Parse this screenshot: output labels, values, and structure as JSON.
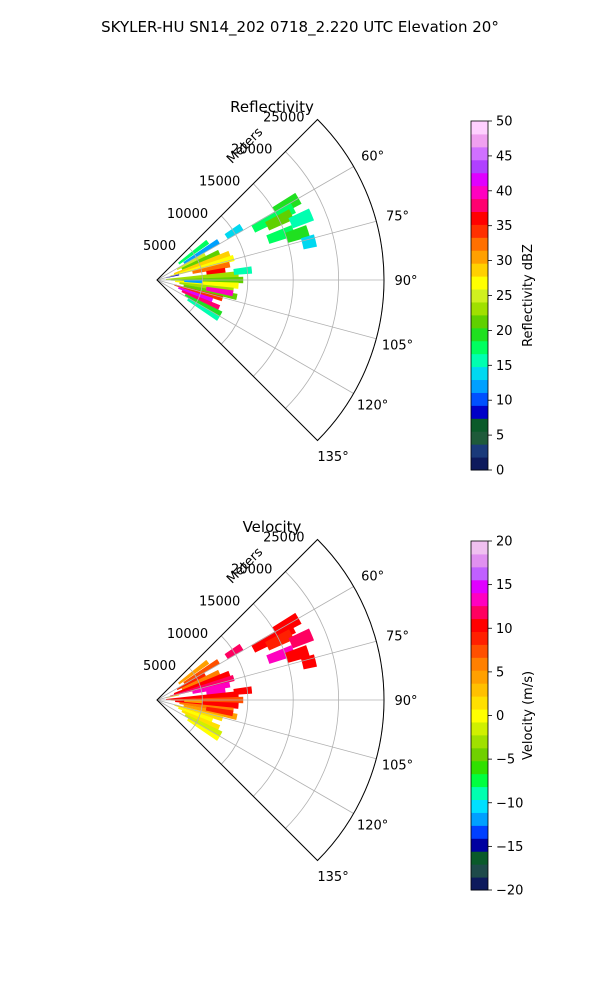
{
  "figure": {
    "suptitle": "SKYLER-HU  SN14_202  0718_2.220 UTC Elevation 20°"
  },
  "chart_data": [
    {
      "type": "heatmap",
      "projection": "polar-sector",
      "title": "Reflectivity",
      "radial_label": "Meters",
      "radial_ticks": [
        5000,
        10000,
        15000,
        20000,
        25000
      ],
      "radial_tick_labels": [
        "5000",
        "10000",
        "15000",
        "20000",
        "25000"
      ],
      "rmax": 25000,
      "azimuth_range_deg": [
        45,
        135
      ],
      "azimuth_ticks": [
        60,
        75,
        90,
        105,
        120,
        135
      ],
      "azimuth_tick_labels": [
        "60°",
        "75°",
        "90°",
        "105°",
        "120°",
        "135°"
      ],
      "grid": true,
      "colorbar": {
        "label": "Reflectivity dBZ",
        "range": [
          0,
          50
        ],
        "ticks": [
          0,
          5,
          10,
          15,
          20,
          25,
          30,
          35,
          40,
          45,
          50
        ],
        "tick_labels": [
          "0",
          "5",
          "10",
          "15",
          "20",
          "25",
          "30",
          "35",
          "40",
          "45",
          "50"
        ],
        "colors": [
          "#0d1a5c",
          "#1a3a7a",
          "#1e5a3a",
          "#0a5a2a",
          "#0000c8",
          "#0050ff",
          "#00a0ff",
          "#00d8f0",
          "#00ffb0",
          "#00ff60",
          "#20e020",
          "#60d000",
          "#a0e000",
          "#d0f020",
          "#ffff00",
          "#ffd000",
          "#ffa000",
          "#ff7000",
          "#ff3000",
          "#ff0000",
          "#ff0070",
          "#ff00c0",
          "#e000ff",
          "#b040ff",
          "#d070ff",
          "#f0a0f0",
          "#ffd0ff"
        ]
      },
      "cells": [
        {
          "az": 60,
          "r": [
            15000,
            18000
          ],
          "v": 20
        },
        {
          "az": 62,
          "r": [
            12000,
            17000
          ],
          "v": 18
        },
        {
          "az": 64,
          "r": [
            13500,
            16500
          ],
          "v": 22
        },
        {
          "az": 67,
          "r": [
            16000,
            18500
          ],
          "v": 15
        },
        {
          "az": 70,
          "r": [
            13000,
            16000
          ],
          "v": 17
        },
        {
          "az": 72,
          "r": [
            15000,
            17500
          ],
          "v": 19
        },
        {
          "az": 76,
          "r": [
            16500,
            18000
          ],
          "v": 14
        },
        {
          "az": 58,
          "r": [
            9000,
            11000
          ],
          "v": 14
        },
        {
          "az": 53,
          "r": [
            3000,
            7000
          ],
          "v": 18
        },
        {
          "az": 58,
          "r": [
            3500,
            8000
          ],
          "v": 12
        },
        {
          "az": 62,
          "r": [
            2500,
            6000
          ],
          "v": 25
        },
        {
          "az": 66,
          "r": [
            3000,
            7500
          ],
          "v": 22
        },
        {
          "az": 70,
          "r": [
            2000,
            8500
          ],
          "v": 28
        },
        {
          "az": 74,
          "r": [
            1500,
            8800
          ],
          "v": 26
        },
        {
          "az": 78,
          "r": [
            4000,
            8200
          ],
          "v": 33
        },
        {
          "az": 82,
          "r": [
            5500,
            7600
          ],
          "v": 36
        },
        {
          "az": 86,
          "r": [
            1000,
            9000
          ],
          "v": 24
        },
        {
          "az": 90,
          "r": [
            1500,
            9500
          ],
          "v": 22
        },
        {
          "az": 94,
          "r": [
            2000,
            9000
          ],
          "v": 27
        },
        {
          "az": 98,
          "r": [
            2500,
            8500
          ],
          "v": 24
        },
        {
          "az": 102,
          "r": [
            3000,
            9000
          ],
          "v": 21
        },
        {
          "az": 106,
          "r": [
            2000,
            7500
          ],
          "v": 35
        },
        {
          "az": 110,
          "r": [
            2500,
            6500
          ],
          "v": 42
        },
        {
          "az": 114,
          "r": [
            3000,
            7500
          ],
          "v": 38
        },
        {
          "az": 118,
          "r": [
            3500,
            8000
          ],
          "v": 20
        },
        {
          "az": 122,
          "r": [
            4000,
            8000
          ],
          "v": 16
        },
        {
          "az": 100,
          "r": [
            5500,
            8500
          ],
          "v": 40
        },
        {
          "az": 92,
          "r": [
            3000,
            5000
          ],
          "v": 12
        },
        {
          "az": 76,
          "r": [
            1000,
            2500
          ],
          "v": 9
        },
        {
          "az": 84,
          "r": [
            8500,
            10500
          ],
          "v": 16
        }
      ]
    },
    {
      "type": "heatmap",
      "projection": "polar-sector",
      "title": "Velocity",
      "radial_label": "Meters",
      "radial_ticks": [
        5000,
        10000,
        15000,
        20000,
        25000
      ],
      "radial_tick_labels": [
        "5000",
        "10000",
        "15000",
        "20000",
        "25000"
      ],
      "rmax": 25000,
      "azimuth_range_deg": [
        45,
        135
      ],
      "azimuth_ticks": [
        60,
        75,
        90,
        105,
        120,
        135
      ],
      "azimuth_tick_labels": [
        "60°",
        "75°",
        "90°",
        "105°",
        "120°",
        "135°"
      ],
      "grid": true,
      "colorbar": {
        "label": "Velocity (m/s)",
        "range": [
          -20,
          20
        ],
        "ticks": [
          -20,
          -15,
          -10,
          -5,
          0,
          5,
          10,
          15,
          20
        ],
        "tick_labels": [
          "−20",
          "−15",
          "−10",
          "−5",
          "0",
          "5",
          "10",
          "15",
          "20"
        ],
        "colors": [
          "#0d1a5c",
          "#1e4a4a",
          "#0a5a2a",
          "#0000a0",
          "#0040ff",
          "#00a0ff",
          "#00e0ff",
          "#00ffb0",
          "#00ff40",
          "#30e000",
          "#70d000",
          "#a0e000",
          "#d0f000",
          "#ffff00",
          "#ffe000",
          "#ffc000",
          "#ffa000",
          "#ff8000",
          "#ff5000",
          "#ff2000",
          "#ff0000",
          "#ff0060",
          "#ff00c0",
          "#e000ff",
          "#c060ff",
          "#e090f0",
          "#f0c0f0"
        ]
      },
      "cells": [
        {
          "az": 60,
          "r": [
            15000,
            18000
          ],
          "v": 10
        },
        {
          "az": 62,
          "r": [
            12000,
            17000
          ],
          "v": 11
        },
        {
          "az": 64,
          "r": [
            13500,
            16500
          ],
          "v": 9
        },
        {
          "az": 67,
          "r": [
            16000,
            18500
          ],
          "v": 12
        },
        {
          "az": 70,
          "r": [
            13000,
            16000
          ],
          "v": 13
        },
        {
          "az": 72,
          "r": [
            15000,
            17500
          ],
          "v": 10
        },
        {
          "az": 76,
          "r": [
            16500,
            18000
          ],
          "v": 11
        },
        {
          "az": 58,
          "r": [
            9000,
            11000
          ],
          "v": 12
        },
        {
          "az": 53,
          "r": [
            3000,
            7000
          ],
          "v": 4
        },
        {
          "az": 58,
          "r": [
            3500,
            8000
          ],
          "v": 7
        },
        {
          "az": 62,
          "r": [
            2500,
            6000
          ],
          "v": 9
        },
        {
          "az": 66,
          "r": [
            3000,
            7500
          ],
          "v": 6
        },
        {
          "az": 70,
          "r": [
            2000,
            8500
          ],
          "v": 10
        },
        {
          "az": 74,
          "r": [
            1500,
            8800
          ],
          "v": 12
        },
        {
          "az": 78,
          "r": [
            4000,
            8200
          ],
          "v": 14
        },
        {
          "az": 82,
          "r": [
            5500,
            7600
          ],
          "v": 13
        },
        {
          "az": 86,
          "r": [
            1000,
            9000
          ],
          "v": 10
        },
        {
          "az": 90,
          "r": [
            1500,
            9500
          ],
          "v": 8
        },
        {
          "az": 94,
          "r": [
            2000,
            9000
          ],
          "v": 11
        },
        {
          "az": 98,
          "r": [
            2500,
            8500
          ],
          "v": 6
        },
        {
          "az": 102,
          "r": [
            3000,
            9000
          ],
          "v": 4
        },
        {
          "az": 106,
          "r": [
            2000,
            7500
          ],
          "v": 2
        },
        {
          "az": 110,
          "r": [
            2500,
            6500
          ],
          "v": 0
        },
        {
          "az": 114,
          "r": [
            3000,
            7500
          ],
          "v": 1
        },
        {
          "az": 118,
          "r": [
            3500,
            8000
          ],
          "v": -2
        },
        {
          "az": 122,
          "r": [
            4000,
            8000
          ],
          "v": 0
        },
        {
          "az": 100,
          "r": [
            5500,
            8500
          ],
          "v": 9
        },
        {
          "az": 92,
          "r": [
            3000,
            5000
          ],
          "v": 5
        },
        {
          "az": 76,
          "r": [
            1000,
            2500
          ],
          "v": 3
        },
        {
          "az": 84,
          "r": [
            8500,
            10500
          ],
          "v": 11
        }
      ]
    }
  ]
}
